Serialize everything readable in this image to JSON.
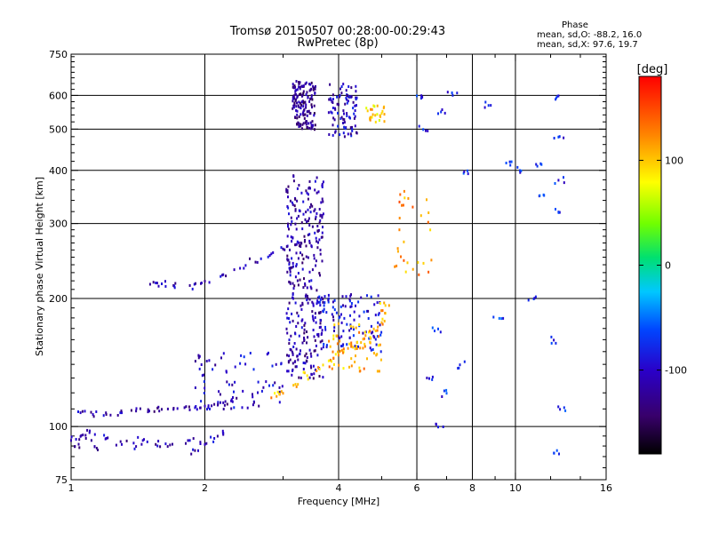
{
  "chart_data": {
    "type": "scatter",
    "title": "Tromsø 20150507 00:28:00-00:29:43",
    "subtitle": "RwPretec (8p)",
    "xlabel": "Frequency [MHz]",
    "ylabel": "Stationary phase Virtual Height [km]",
    "x_scale": "log",
    "y_scale": "log",
    "xlim": [
      1,
      16
    ],
    "ylim": [
      75,
      750
    ],
    "x_ticks": [
      1,
      2,
      4,
      6,
      8,
      10,
      16
    ],
    "x_tick_labels": [
      "1",
      "2",
      "4",
      "6",
      "8",
      "10",
      "16"
    ],
    "x_grid": [
      2,
      4,
      6,
      8,
      10
    ],
    "y_ticks": [
      75,
      100,
      200,
      300,
      400,
      500,
      600,
      750
    ],
    "y_tick_labels": [
      "75",
      "100",
      "200",
      "300",
      "400",
      "500",
      "600",
      "750"
    ],
    "y_grid": [
      100,
      200,
      300,
      400,
      500,
      600
    ],
    "grid": true,
    "colorbar": {
      "label": "[deg]",
      "range": [
        -180,
        180
      ],
      "ticks": [
        100,
        0,
        -100
      ],
      "tick_labels": [
        "100",
        "0",
        "-100"
      ]
    },
    "stats": {
      "header": "Phase",
      "o_line": "mean, sd,O: -88.2, 16.0",
      "x_line": "mean, sd,X:  97.6, 19.7"
    },
    "series": [
      {
        "type": "points",
        "points": [
          [
            1.05,
            108
          ],
          [
            1.12,
            107
          ],
          [
            1.2,
            107
          ],
          [
            1.3,
            108
          ],
          [
            1.4,
            109
          ],
          [
            1.5,
            109
          ],
          [
            1.6,
            110
          ],
          [
            1.7,
            110
          ],
          [
            1.8,
            111
          ],
          [
            1.9,
            111
          ],
          [
            2.0,
            112
          ],
          [
            2.1,
            113
          ],
          [
            2.2,
            114
          ],
          [
            2.3,
            116
          ]
        ],
        "phase": -115
      },
      {
        "type": "points",
        "points": [
          [
            1.0,
            93
          ],
          [
            1.02,
            90
          ],
          [
            1.05,
            95
          ],
          [
            1.08,
            94
          ],
          [
            1.1,
            97
          ],
          [
            1.13,
            90
          ],
          [
            1.2,
            94
          ],
          [
            1.3,
            91
          ],
          [
            1.4,
            90
          ],
          [
            1.45,
            93
          ],
          [
            1.55,
            91
          ],
          [
            1.65,
            90
          ],
          [
            1.85,
            93
          ],
          [
            1.9,
            88
          ],
          [
            2.0,
            91
          ],
          [
            2.1,
            94
          ],
          [
            2.2,
            96
          ]
        ],
        "phase": -110
      },
      {
        "type": "cluster",
        "x": [
          1.9,
          3.0
        ],
        "y": [
          110,
          150
        ],
        "phase": -100,
        "count": 70
      },
      {
        "type": "points",
        "points": [
          [
            1.55,
            218
          ],
          [
            1.6,
            217
          ],
          [
            1.7,
            215
          ],
          [
            1.85,
            215
          ],
          [
            2.0,
            220
          ],
          [
            2.2,
            228
          ],
          [
            2.4,
            236
          ],
          [
            2.6,
            244
          ],
          [
            2.8,
            253
          ],
          [
            3.0,
            262
          ],
          [
            3.2,
            268
          ],
          [
            3.3,
            270
          ]
        ],
        "phase": -112
      },
      {
        "type": "cluster",
        "x": [
          3.05,
          3.7
        ],
        "y": [
          130,
          390
        ],
        "phase": -115,
        "count": 320
      },
      {
        "type": "cluster",
        "x": [
          3.15,
          3.55
        ],
        "y": [
          500,
          650
        ],
        "phase": -125,
        "count": 150
      },
      {
        "type": "cluster",
        "x": [
          3.8,
          4.4
        ],
        "y": [
          480,
          640
        ],
        "phase": -105,
        "count": 90
      },
      {
        "type": "cluster",
        "x": [
          3.6,
          5.0
        ],
        "y": [
          150,
          205
        ],
        "phase": -95,
        "count": 110
      },
      {
        "type": "points",
        "points": [
          [
            2.9,
            118
          ],
          [
            3.0,
            120
          ],
          [
            3.2,
            126
          ],
          [
            3.4,
            132
          ],
          [
            3.6,
            138
          ],
          [
            3.8,
            143
          ],
          [
            4.0,
            148
          ],
          [
            4.2,
            153
          ],
          [
            4.4,
            158
          ],
          [
            4.6,
            164
          ],
          [
            4.8,
            170
          ],
          [
            5.0,
            176
          ],
          [
            5.1,
            185
          ],
          [
            5.1,
            193
          ]
        ],
        "phase": 105
      },
      {
        "type": "cluster",
        "x": [
          3.8,
          5.0
        ],
        "y": [
          135,
          175
        ],
        "phase": 110,
        "count": 60
      },
      {
        "type": "cluster",
        "x": [
          4.6,
          5.1
        ],
        "y": [
          520,
          570
        ],
        "phase": 95,
        "count": 25
      },
      {
        "type": "cluster",
        "x": [
          5.3,
          6.5
        ],
        "y": [
          225,
          360
        ],
        "phase": 120,
        "count": 30
      },
      {
        "type": "points",
        "points": [
          [
            6.0,
            600
          ],
          [
            6.2,
            500
          ],
          [
            6.8,
            550
          ],
          [
            7.2,
            610
          ],
          [
            7.8,
            400
          ],
          [
            8.8,
            570
          ],
          [
            9.8,
            420
          ],
          [
            10.3,
            400
          ],
          [
            11.2,
            410
          ],
          [
            12.5,
            600
          ],
          [
            12.5,
            480
          ],
          [
            12.5,
            380
          ],
          [
            12.5,
            320
          ],
          [
            6.7,
            170
          ],
          [
            6.7,
            100
          ],
          [
            7.5,
            140
          ],
          [
            9.2,
            180
          ],
          [
            11.0,
            200
          ],
          [
            12.2,
            160
          ],
          [
            12.6,
            110
          ],
          [
            12.4,
            88
          ],
          [
            6.4,
            130
          ],
          [
            7.0,
            120
          ],
          [
            11.6,
            350
          ]
        ],
        "phase": -80
      }
    ]
  }
}
